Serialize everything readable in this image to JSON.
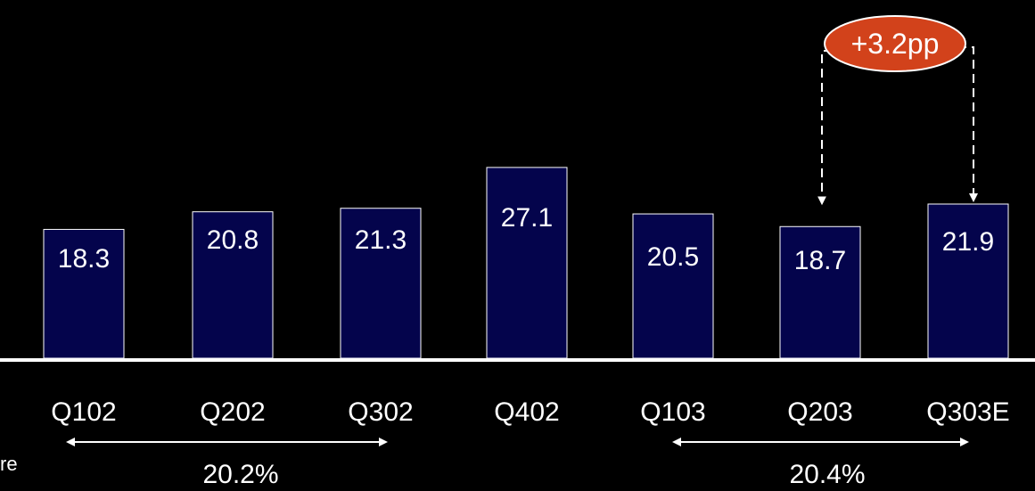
{
  "chart_data": {
    "type": "bar",
    "categories": [
      "Q102",
      "Q202",
      "Q302",
      "Q402",
      "Q103",
      "Q203",
      "Q303E"
    ],
    "values": [
      18.3,
      20.8,
      21.3,
      27.1,
      20.5,
      18.7,
      21.9
    ],
    "value_labels": [
      "18.3",
      "20.8",
      "21.3",
      "27.1",
      "20.5",
      "18.7",
      "21.9"
    ],
    "ylim": [
      0,
      33
    ],
    "grid": false,
    "colors": {
      "background": "#000000",
      "bar_fill": "#04044c",
      "bar_stroke": "#ffffff",
      "text": "#ffffff",
      "callout_fill": "#d2421b"
    },
    "annotations": {
      "callout_label": "+3.2pp",
      "callout_from": "Q203",
      "callout_to": "Q303E",
      "ranges": [
        {
          "from": "Q102",
          "to": "Q302",
          "label": "20.2%"
        },
        {
          "from": "Q103",
          "to": "Q303E",
          "label": "20.4%"
        }
      ]
    }
  },
  "edge_text": "re"
}
